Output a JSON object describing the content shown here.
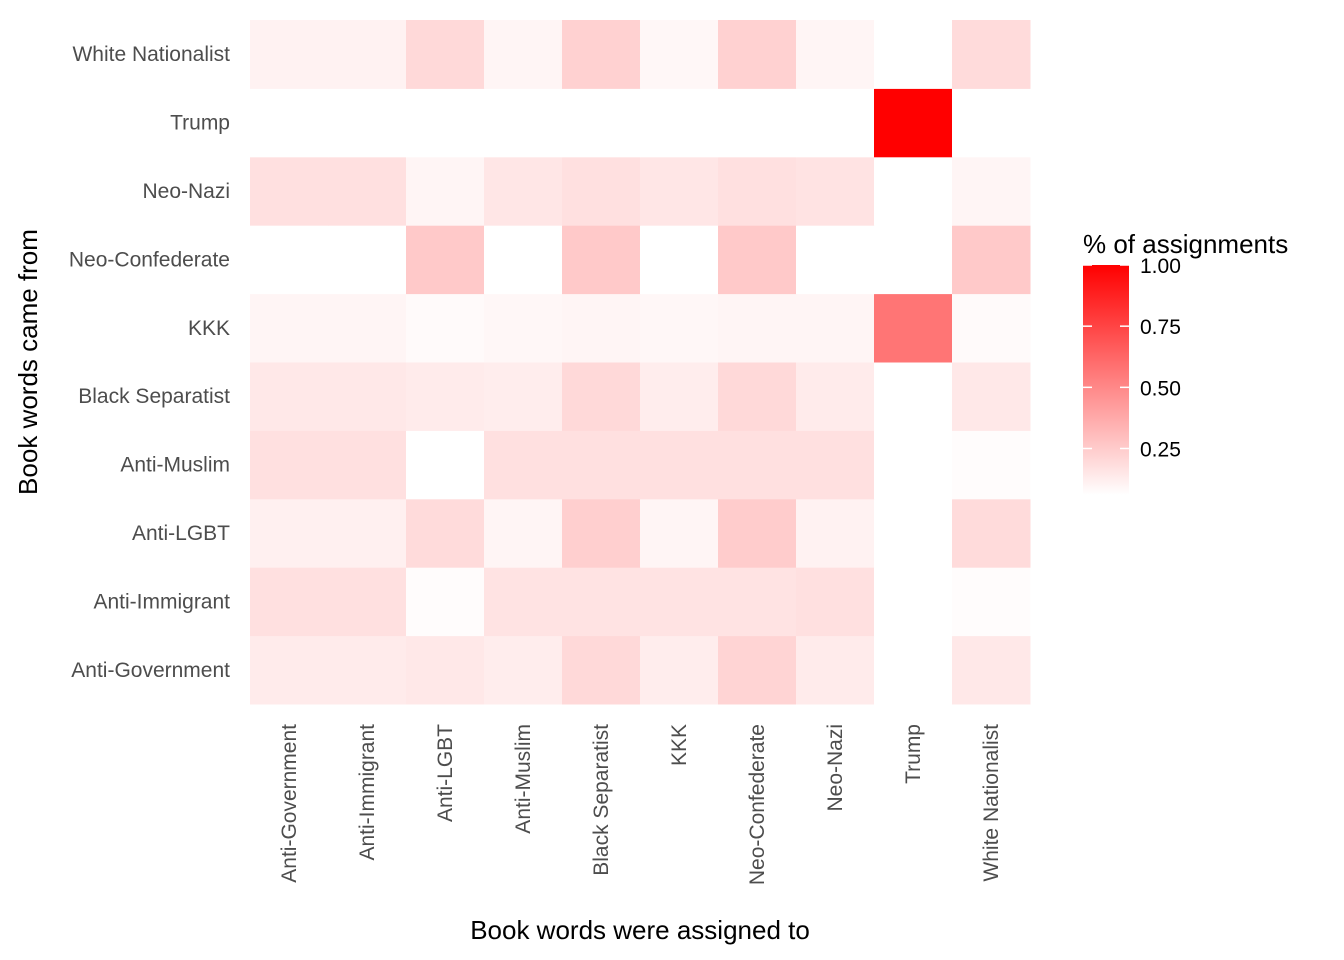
{
  "chart_data": {
    "type": "heatmap",
    "title": "",
    "xlabel": "Book words were assigned to",
    "ylabel": "Book words came from",
    "x_categories": [
      "Anti-Government",
      "Anti-Immigrant",
      "Anti-LGBT",
      "Anti-Muslim",
      "Black Separatist",
      "KKK",
      "Neo-Confederate",
      "Neo-Nazi",
      "Trump",
      "White Nationalist"
    ],
    "y_categories": [
      "Anti-Government",
      "Anti-Immigrant",
      "Anti-LGBT",
      "Anti-Muslim",
      "Black Separatist",
      "KKK",
      "Neo-Confederate",
      "Neo-Nazi",
      "Trump",
      "White Nationalist"
    ],
    "values": [
      [
        0.08,
        0.08,
        0.09,
        0.07,
        0.15,
        0.07,
        0.17,
        0.08,
        0.0,
        0.09
      ],
      [
        0.12,
        0.12,
        0.01,
        0.11,
        0.11,
        0.11,
        0.11,
        0.12,
        0.0,
        0.01
      ],
      [
        0.06,
        0.06,
        0.14,
        0.04,
        0.19,
        0.04,
        0.2,
        0.05,
        0.0,
        0.14
      ],
      [
        0.12,
        0.12,
        0.0,
        0.12,
        0.12,
        0.12,
        0.12,
        0.12,
        0.0,
        0.01
      ],
      [
        0.09,
        0.09,
        0.08,
        0.07,
        0.15,
        0.07,
        0.15,
        0.08,
        0.0,
        0.09
      ],
      [
        0.04,
        0.04,
        0.02,
        0.03,
        0.04,
        0.03,
        0.04,
        0.04,
        0.54,
        0.02
      ],
      [
        0.0,
        0.0,
        0.21,
        0.0,
        0.21,
        0.0,
        0.21,
        0.0,
        0.0,
        0.21
      ],
      [
        0.12,
        0.12,
        0.04,
        0.1,
        0.12,
        0.1,
        0.12,
        0.11,
        0.0,
        0.04
      ],
      [
        0.0,
        0.0,
        0.0,
        0.0,
        0.0,
        0.0,
        0.0,
        0.0,
        1.0,
        0.0
      ],
      [
        0.05,
        0.05,
        0.15,
        0.04,
        0.18,
        0.03,
        0.18,
        0.04,
        0.0,
        0.14
      ]
    ],
    "scale": {
      "low_color": "#ffffff",
      "high_color": "#ff0000",
      "limits": [
        0.0,
        1.0
      ]
    },
    "legend": {
      "title": "% of assignments",
      "ticks": [
        1.0,
        0.75,
        0.5,
        0.25
      ],
      "tick_labels": [
        "1.00",
        "0.75",
        "0.50",
        "0.25"
      ],
      "placement": "right"
    },
    "grid": false
  }
}
